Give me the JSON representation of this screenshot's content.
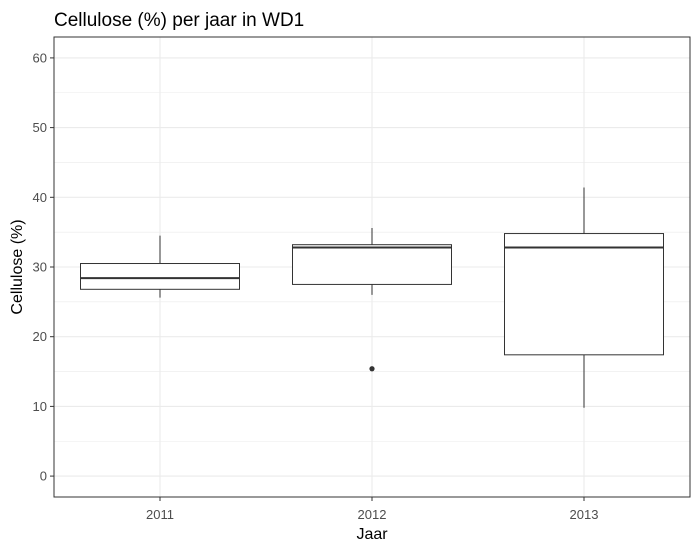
{
  "chart_data": {
    "type": "boxplot",
    "title": "Cellulose (%) per jaar in WD1",
    "xlabel": "Jaar",
    "ylabel": "Cellulose (%)",
    "ylim": [
      -3,
      63
    ],
    "yticks": [
      0,
      10,
      20,
      30,
      40,
      50,
      60
    ],
    "categories": [
      "2011",
      "2012",
      "2013"
    ],
    "grid": true,
    "boxes": [
      {
        "category": "2011",
        "whisker_low": 25.6,
        "q1": 26.8,
        "median": 28.4,
        "q3": 30.5,
        "whisker_high": 34.5,
        "outliers": []
      },
      {
        "category": "2012",
        "whisker_low": 26.0,
        "q1": 27.5,
        "median": 32.8,
        "q3": 33.2,
        "whisker_high": 35.6,
        "outliers": [
          15.4
        ]
      },
      {
        "category": "2013",
        "whisker_low": 9.8,
        "q1": 17.4,
        "median": 32.8,
        "q3": 34.8,
        "whisker_high": 41.4,
        "outliers": []
      }
    ],
    "colors": {
      "box_stroke": "#333333",
      "box_fill": "#ffffff",
      "grid": "#ebebeb",
      "panel_border": "#333333"
    }
  }
}
